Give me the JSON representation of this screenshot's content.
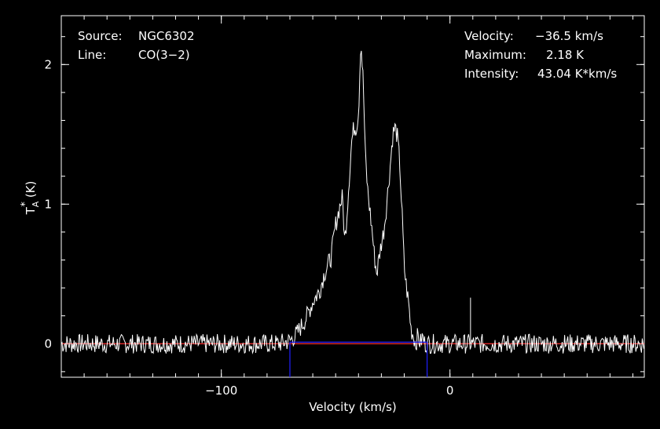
{
  "chart_data": {
    "type": "line",
    "xlabel": "Velocity (km/s)",
    "ylabel_main": "T",
    "ylabel_sup": "*",
    "ylabel_sub": "A",
    "ylabel_unit": "(K)",
    "xlim": [
      -170,
      85
    ],
    "ylim": [
      -0.24,
      2.35
    ],
    "x_ticks": [
      -100,
      0
    ],
    "x_tick_labels": [
      "−100",
      "0"
    ],
    "y_ticks": [
      0,
      1,
      2
    ],
    "y_tick_labels": [
      "0",
      "1",
      "2"
    ],
    "x_minor_step": 10,
    "y_minor_step": 0.2,
    "grid": false,
    "info_left": [
      {
        "key": "Source:",
        "value": "NGC6302"
      },
      {
        "key": "Line:",
        "value": "CO(3−2)"
      }
    ],
    "info_right": [
      {
        "key": "Velocity:",
        "value": "−36.5 km/s"
      },
      {
        "key": "Maximum:",
        "value": "2.18 K"
      },
      {
        "key": "Intensity:",
        "value": "43.04 K*km/s"
      }
    ],
    "baseline": 0.0,
    "integration_window": [
      -70,
      -10
    ],
    "spike": {
      "x": 9,
      "y": 0.33
    },
    "series": [
      {
        "x": [
          -170,
          -75,
          -70,
          -67,
          -63,
          -60,
          -57,
          -55,
          -52,
          -50,
          -48,
          -47,
          -46,
          -45,
          -44,
          -43,
          -42,
          -41,
          -40,
          -39,
          -38,
          -37,
          -36,
          -35,
          -34,
          -33,
          -32,
          -31,
          -30,
          -29,
          -28,
          -27,
          -26,
          -25,
          -24,
          -23,
          -22,
          -21,
          -20,
          -19,
          -18,
          -17,
          -16,
          -15,
          -14,
          -13,
          -12,
          -11,
          -10,
          -5,
          85
        ],
        "y": [
          0,
          0,
          0.02,
          0.07,
          0.18,
          0.3,
          0.38,
          0.5,
          0.62,
          0.85,
          1.0,
          1.05,
          0.72,
          0.95,
          1.2,
          1.45,
          1.55,
          1.55,
          1.65,
          2.18,
          1.9,
          1.35,
          1.1,
          0.95,
          0.8,
          0.62,
          0.5,
          0.62,
          0.72,
          0.8,
          0.95,
          1.12,
          1.3,
          1.5,
          1.55,
          1.48,
          1.3,
          0.95,
          0.55,
          0.4,
          0.28,
          0.1,
          0.06,
          0,
          0.06,
          0,
          0.05,
          0,
          0,
          0,
          0
        ]
      },
      {
        "x": [
          -170,
          85
        ],
        "y": [
          0,
          0
        ]
      }
    ]
  },
  "colors": {
    "background": "#000000",
    "spectrum": "#ffffff",
    "baseline": "#ff3030",
    "window": "#2020ff"
  }
}
